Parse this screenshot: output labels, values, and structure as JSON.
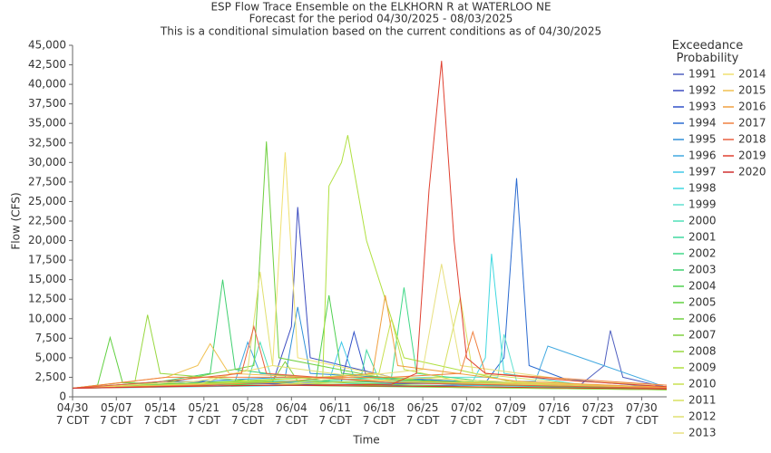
{
  "chart_data": {
    "type": "line",
    "title": "ESP Flow Trace Ensemble on the ELKHORN R at WATERLOO NE",
    "subtitle": "Forecast for the period 04/30/2025 - 08/03/2025",
    "note": "This is a conditional simulation based on the current conditions as of 04/30/2025",
    "x_label": "Time",
    "y_label": "Flow (CFS)",
    "legend_title": "Exceedance Probability",
    "xlim": [
      "04/30",
      "08/03"
    ],
    "xticks": [
      {
        "value": "04/30",
        "label": "04/30 7 CDT"
      },
      {
        "value": "05/07",
        "label": "05/07 7 CDT"
      },
      {
        "value": "05/14",
        "label": "05/14 7 CDT"
      },
      {
        "value": "05/21",
        "label": "05/21 7 CDT"
      },
      {
        "value": "05/28",
        "label": "05/28 7 CDT"
      },
      {
        "value": "06/04",
        "label": "06/04 7 CDT"
      },
      {
        "value": "06/11",
        "label": "06/11 7 CDT"
      },
      {
        "value": "06/18",
        "label": "06/18 7 CDT"
      },
      {
        "value": "06/25",
        "label": "06/25 7 CDT"
      },
      {
        "value": "07/02",
        "label": "07/02 7 CDT"
      },
      {
        "value": "07/09",
        "label": "07/09 7 CDT"
      },
      {
        "value": "07/16",
        "label": "07/16 7 CDT"
      },
      {
        "value": "07/23",
        "label": "07/23 7 CDT"
      },
      {
        "value": "07/30",
        "label": "07/30 7 CDT"
      }
    ],
    "ylim": [
      0,
      45000
    ],
    "yticks": [
      0,
      {
        "value": 2500,
        "label": "2,500"
      },
      {
        "value": 5000,
        "label": "5,000"
      },
      {
        "value": 7500,
        "label": "7,500"
      },
      {
        "value": 10000,
        "label": "10,000"
      },
      {
        "value": 12500,
        "label": "12,500"
      },
      {
        "value": 15000,
        "label": "15,000"
      },
      {
        "value": 17500,
        "label": "17,500"
      },
      {
        "value": 20000,
        "label": "20,000"
      },
      {
        "value": 22500,
        "label": "22,500"
      },
      {
        "value": 25000,
        "label": "25,000"
      },
      {
        "value": 27500,
        "label": "27,500"
      },
      {
        "value": 30000,
        "label": "30,000"
      },
      {
        "value": 32500,
        "label": "32,500"
      },
      {
        "value": 35000,
        "label": "35,000"
      },
      {
        "value": 37500,
        "label": "37,500"
      },
      {
        "value": 40000,
        "label": "40,000"
      },
      {
        "value": 42500,
        "label": "42,500"
      },
      {
        "value": 45000,
        "label": "45,000"
      }
    ],
    "grid": false,
    "series": [
      {
        "name": "1991",
        "color": "#5060c0",
        "x": [
          "04/30",
          "05/20",
          "06/20",
          "07/20",
          "07/24",
          "07/25",
          "07/27",
          "08/03"
        ],
        "values": [
          1100,
          1800,
          1500,
          1400,
          4000,
          8500,
          2500,
          1200
        ]
      },
      {
        "name": "1992",
        "color": "#3c4cc0",
        "x": [
          "04/30",
          "05/15",
          "06/01",
          "06/04",
          "06/05",
          "06/07",
          "06/20",
          "07/10",
          "08/03"
        ],
        "values": [
          1100,
          2000,
          1800,
          9000,
          24300,
          5000,
          2500,
          1500,
          1000
        ]
      },
      {
        "name": "1993",
        "color": "#3050c8",
        "x": [
          "04/30",
          "05/20",
          "06/12",
          "06/14",
          "06/16",
          "07/01",
          "08/03"
        ],
        "values": [
          1100,
          1500,
          2000,
          8300,
          2500,
          1800,
          1100
        ]
      },
      {
        "name": "1994",
        "color": "#2a6ad0",
        "x": [
          "04/30",
          "06/01",
          "07/05",
          "07/08",
          "07/10",
          "07/12",
          "07/18",
          "08/03"
        ],
        "values": [
          1100,
          1500,
          1800,
          5000,
          28000,
          4000,
          2200,
          1200
        ]
      },
      {
        "name": "1995",
        "color": "#3090d8",
        "x": [
          "04/30",
          "05/20",
          "06/03",
          "06/05",
          "06/07",
          "06/25",
          "07/15",
          "08/03"
        ],
        "values": [
          1100,
          2000,
          2500,
          11500,
          3000,
          2200,
          1500,
          1000
        ]
      },
      {
        "name": "1996",
        "color": "#40a8e0",
        "x": [
          "04/30",
          "05/26",
          "05/28",
          "05/30",
          "06/20",
          "07/13",
          "07/15",
          "08/03"
        ],
        "values": [
          1100,
          2000,
          7000,
          3000,
          1800,
          2000,
          6500,
          1200
        ]
      },
      {
        "name": "1997",
        "color": "#40c8e8",
        "x": [
          "04/30",
          "05/15",
          "06/10",
          "06/12",
          "06/14",
          "07/01",
          "08/03"
        ],
        "values": [
          1100,
          1600,
          2000,
          7000,
          2500,
          1500,
          1000
        ]
      },
      {
        "name": "1998",
        "color": "#40d8e0",
        "x": [
          "04/30",
          "06/01",
          "07/03",
          "07/05",
          "07/06",
          "07/08",
          "07/20",
          "08/03"
        ],
        "values": [
          1100,
          1400,
          2000,
          5000,
          18300,
          3000,
          1600,
          1100
        ]
      },
      {
        "name": "1999",
        "color": "#60e0d0",
        "x": [
          "04/30",
          "05/10",
          "06/01",
          "06/26",
          "07/07",
          "07/08",
          "07/10",
          "08/03"
        ],
        "values": [
          1100,
          1600,
          2000,
          2500,
          2500,
          8000,
          2000,
          1100
        ]
      },
      {
        "name": "2000",
        "color": "#50e0b8",
        "x": [
          "04/30",
          "05/28",
          "05/30",
          "06/01",
          "07/01",
          "08/03"
        ],
        "values": [
          1100,
          2000,
          7000,
          2000,
          1800,
          1200
        ]
      },
      {
        "name": "2001",
        "color": "#40d8a0",
        "x": [
          "04/30",
          "05/31",
          "06/15",
          "06/16",
          "06/18",
          "07/20",
          "08/03"
        ],
        "values": [
          1100,
          1500,
          2000,
          6000,
          2200,
          1400,
          1000
        ]
      },
      {
        "name": "2002",
        "color": "#40d888",
        "x": [
          "04/30",
          "05/20",
          "06/20",
          "06/22",
          "06/24",
          "07/10",
          "08/03"
        ],
        "values": [
          1100,
          1500,
          2500,
          14000,
          3000,
          1500,
          1000
        ]
      },
      {
        "name": "2003",
        "color": "#40d070",
        "x": [
          "04/30",
          "05/10",
          "05/22",
          "05/24",
          "05/26",
          "06/10",
          "08/03"
        ],
        "values": [
          1100,
          1400,
          3000,
          15000,
          3500,
          2000,
          1100
        ]
      },
      {
        "name": "2004",
        "color": "#50d050",
        "x": [
          "04/30",
          "05/20",
          "06/08",
          "06/10",
          "06/12",
          "07/01",
          "08/03"
        ],
        "values": [
          1100,
          1800,
          2500,
          13000,
          3000,
          1600,
          1000
        ]
      },
      {
        "name": "2005",
        "color": "#60d040",
        "x": [
          "04/30",
          "05/04",
          "05/06",
          "05/08",
          "06/01",
          "07/01",
          "08/03"
        ],
        "values": [
          1100,
          1500,
          7600,
          1800,
          1500,
          1200,
          900
        ]
      },
      {
        "name": "2006",
        "color": "#70d040",
        "x": [
          "04/30",
          "05/15",
          "05/29",
          "05/31",
          "06/02",
          "06/20",
          "08/03"
        ],
        "values": [
          1100,
          1800,
          4000,
          32700,
          5000,
          2200,
          1000
        ]
      },
      {
        "name": "2007",
        "color": "#80d040",
        "x": [
          "04/30",
          "05/20",
          "06/01",
          "06/03",
          "06/05",
          "07/01",
          "08/03"
        ],
        "values": [
          1100,
          1500,
          2000,
          4500,
          2000,
          1300,
          900
        ]
      },
      {
        "name": "2008",
        "color": "#98d840",
        "x": [
          "04/30",
          "05/10",
          "05/12",
          "05/14",
          "06/01",
          "07/01",
          "08/03"
        ],
        "values": [
          1100,
          2000,
          10500,
          3000,
          1800,
          1200,
          900
        ]
      },
      {
        "name": "2009",
        "color": "#b0e040",
        "x": [
          "04/30",
          "05/20",
          "06/09",
          "06/10",
          "06/12",
          "06/13",
          "06/16",
          "06/22",
          "07/10",
          "08/03"
        ],
        "values": [
          1100,
          1700,
          2500,
          27000,
          30000,
          33500,
          20000,
          5000,
          1800,
          1100
        ]
      },
      {
        "name": "2010",
        "color": "#c8e050",
        "x": [
          "04/30",
          "05/25",
          "06/18",
          "06/20",
          "06/22",
          "07/01",
          "08/03"
        ],
        "values": [
          1100,
          1800,
          3000,
          10000,
          3500,
          2000,
          1200
        ]
      },
      {
        "name": "2011",
        "color": "#d8e060",
        "x": [
          "04/30",
          "06/01",
          "06/28",
          "07/01",
          "07/03",
          "07/20",
          "08/03"
        ],
        "values": [
          1100,
          1500,
          2500,
          12700,
          3000,
          1600,
          1000
        ]
      },
      {
        "name": "2012",
        "color": "#e0e070",
        "x": [
          "04/30",
          "05/20",
          "05/28",
          "05/30",
          "06/01",
          "06/20",
          "08/03"
        ],
        "values": [
          1100,
          1600,
          3500,
          16000,
          4000,
          2000,
          1100
        ]
      },
      {
        "name": "2013",
        "color": "#e8e080",
        "x": [
          "04/30",
          "06/01",
          "06/25",
          "06/28",
          "07/01",
          "07/20",
          "08/03"
        ],
        "values": [
          1100,
          1500,
          3500,
          17000,
          4000,
          2000,
          1500
        ]
      },
      {
        "name": "2014",
        "color": "#f0e070",
        "x": [
          "04/30",
          "05/20",
          "06/01",
          "06/03",
          "06/05",
          "06/20",
          "08/03"
        ],
        "values": [
          1100,
          2000,
          4000,
          31300,
          5000,
          2500,
          1200
        ]
      },
      {
        "name": "2015",
        "color": "#f0c050",
        "x": [
          "04/30",
          "05/15",
          "05/20",
          "05/22",
          "05/25",
          "06/20",
          "08/03"
        ],
        "values": [
          1100,
          2500,
          4000,
          6800,
          3000,
          2000,
          1300
        ]
      },
      {
        "name": "2016",
        "color": "#f0a040",
        "x": [
          "04/30",
          "06/01",
          "06/17",
          "06/19",
          "06/21",
          "07/10",
          "08/03"
        ],
        "values": [
          1100,
          1800,
          3000,
          13000,
          4000,
          2000,
          1200
        ]
      },
      {
        "name": "2017",
        "color": "#f08040",
        "x": [
          "04/30",
          "05/15",
          "06/20",
          "07/01",
          "07/03",
          "07/05",
          "08/03"
        ],
        "values": [
          1100,
          2500,
          2500,
          3000,
          8300,
          3000,
          1500
        ]
      },
      {
        "name": "2018",
        "color": "#e86040",
        "x": [
          "04/30",
          "05/15",
          "05/27",
          "05/29",
          "05/31",
          "06/20",
          "08/03"
        ],
        "values": [
          1100,
          2000,
          3000,
          9000,
          3000,
          1800,
          1100
        ]
      },
      {
        "name": "2019",
        "color": "#e04030",
        "x": [
          "04/30",
          "05/20",
          "06/20",
          "06/24",
          "06/26",
          "06/28",
          "06/30",
          "07/02",
          "07/05",
          "07/20",
          "08/03"
        ],
        "values": [
          1100,
          1400,
          1600,
          3000,
          26500,
          43000,
          20000,
          5000,
          3000,
          2000,
          1300
        ]
      },
      {
        "name": "2020",
        "color": "#d03030",
        "x": [
          "04/30",
          "06/01",
          "07/01",
          "08/03"
        ],
        "values": [
          1100,
          1500,
          1300,
          1000
        ]
      }
    ]
  }
}
